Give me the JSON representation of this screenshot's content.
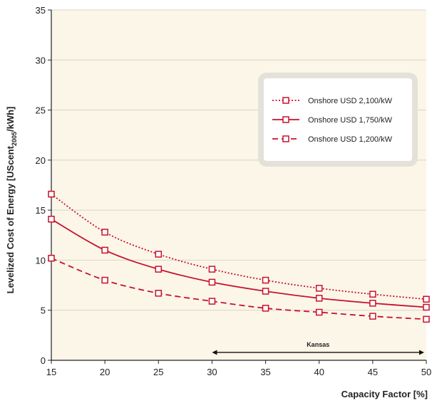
{
  "chart_data": {
    "type": "line",
    "xlabel": "Capacity Factor [%]",
    "ylabel": {
      "main": "Levelized Cost of Energy [UScent",
      "sub": "2005",
      "end": "/kWh]"
    },
    "x": [
      15,
      20,
      25,
      30,
      35,
      40,
      45,
      50
    ],
    "xlim": [
      15,
      50
    ],
    "ylim": [
      0,
      35
    ],
    "xticks": [
      15,
      20,
      25,
      30,
      35,
      40,
      45,
      50
    ],
    "yticks": [
      0,
      5,
      10,
      15,
      20,
      25,
      30,
      35
    ],
    "grid": "horizontal",
    "legend_position": "upper-right",
    "series": [
      {
        "name": "Onshore USD 2,100/kW",
        "style": "dotted",
        "values": [
          16.6,
          12.8,
          10.6,
          9.1,
          8.0,
          7.2,
          6.6,
          6.1
        ]
      },
      {
        "name": "Onshore USD 1,750/kW",
        "style": "solid",
        "values": [
          14.1,
          11.0,
          9.1,
          7.8,
          6.9,
          6.2,
          5.7,
          5.3
        ]
      },
      {
        "name": "Onshore USD 1,200/kW",
        "style": "dashed",
        "values": [
          10.2,
          8.0,
          6.7,
          5.9,
          5.2,
          4.8,
          4.4,
          4.1
        ]
      }
    ],
    "annotations": [
      {
        "text": "Kansas",
        "x_range": [
          30,
          50
        ],
        "y": 1
      }
    ],
    "colors": {
      "line": "#c8102e",
      "plot_background": "#fbf6e8",
      "grid": "#d9d4c7"
    }
  }
}
